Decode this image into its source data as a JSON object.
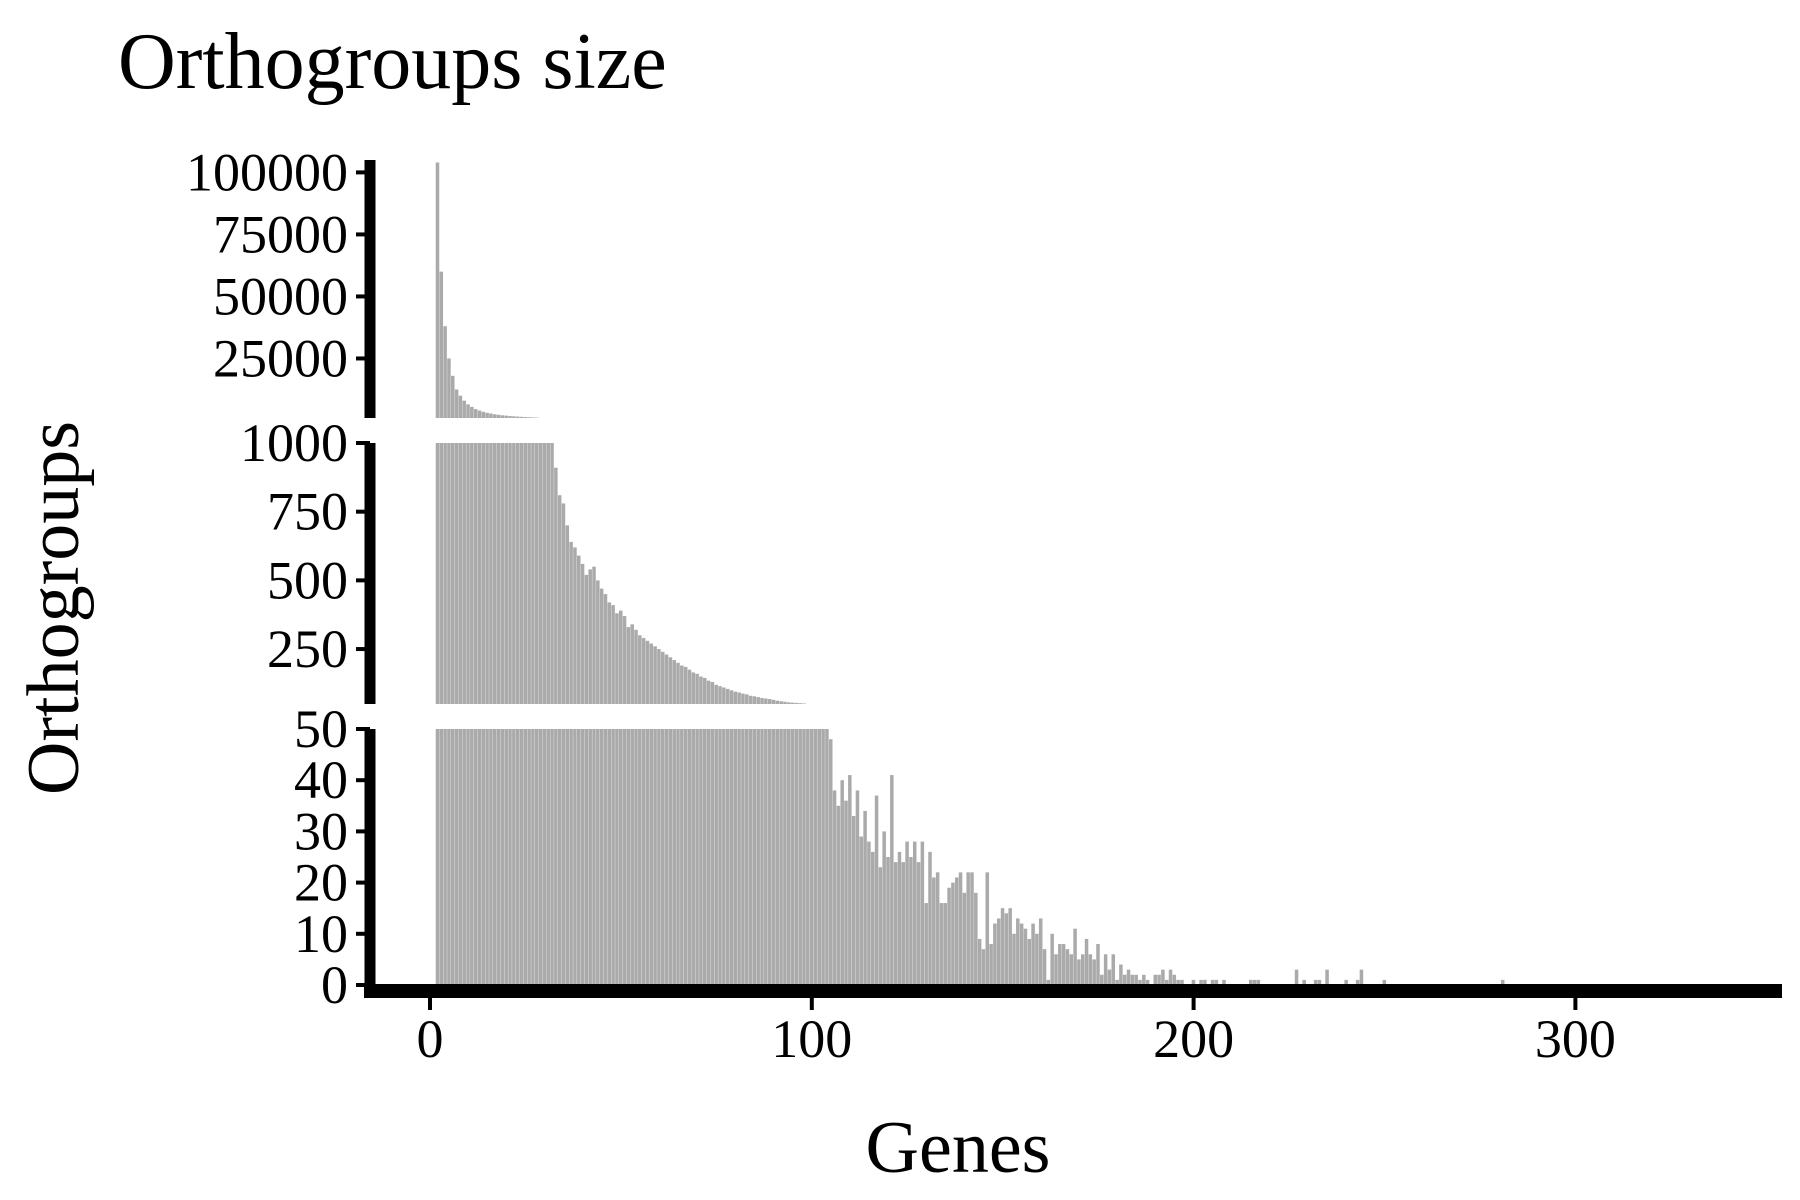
{
  "chart_data": {
    "type": "bar",
    "title": "Orthogroups size",
    "xlabel": "Genes",
    "ylabel": "Orthogroups",
    "bar_color": "#aaaaaa",
    "axis_color": "#000000",
    "background": "#ffffff",
    "grid": false,
    "xlim": [
      -1,
      350
    ],
    "xticks": [
      "0",
      "100",
      "200",
      "300"
    ],
    "xtick_values": [
      0,
      100,
      200,
      300
    ],
    "broken_y_axis": true,
    "y_segments": [
      {
        "name": "upper",
        "range": [
          1000,
          105000
        ],
        "tick_values": [
          25000,
          50000,
          75000,
          100000
        ],
        "tick_labels": [
          "25000",
          "50000",
          "75000",
          "100000"
        ]
      },
      {
        "name": "middle",
        "range": [
          50,
          1000
        ],
        "tick_values": [
          250,
          500,
          750,
          1000
        ],
        "tick_labels": [
          "250",
          "500",
          "750",
          "1000"
        ]
      },
      {
        "name": "lower",
        "range": [
          0,
          50
        ],
        "tick_values": [
          0,
          10,
          20,
          30,
          40,
          50
        ],
        "tick_labels": [
          "0",
          "10",
          "20",
          "30",
          "40",
          "50"
        ]
      }
    ],
    "x_start": 2,
    "values": [
      104000,
      60000,
      38000,
      25000,
      18000,
      12500,
      10000,
      8000,
      6500,
      5500,
      4600,
      4000,
      3500,
      3100,
      2800,
      2500,
      2300,
      2100,
      1950,
      1800,
      1680,
      1570,
      1470,
      1380,
      1300,
      1230,
      1170,
      1110,
      1060,
      1020,
      1000,
      910,
      810,
      780,
      700,
      640,
      620,
      590,
      560,
      520,
      540,
      550,
      500,
      470,
      450,
      420,
      410,
      380,
      390,
      370,
      330,
      340,
      320,
      300,
      290,
      280,
      270,
      260,
      250,
      240,
      230,
      220,
      210,
      200,
      190,
      185,
      175,
      165,
      160,
      150,
      145,
      135,
      130,
      120,
      115,
      110,
      105,
      100,
      95,
      92,
      88,
      85,
      80,
      78,
      75,
      72,
      70,
      68,
      65,
      62,
      60,
      58,
      56,
      55,
      54,
      53,
      52,
      51,
      51,
      50,
      50,
      50,
      50,
      48,
      38,
      35,
      40,
      36,
      41,
      33,
      38,
      29,
      34,
      28,
      26,
      37,
      23,
      30,
      25,
      41,
      24,
      26,
      24,
      28,
      25,
      28,
      24,
      28,
      16,
      26,
      21,
      22,
      16,
      16,
      19,
      20,
      21,
      22,
      18,
      22,
      22,
      18,
      9,
      7,
      22,
      8,
      12,
      13,
      15,
      14,
      15,
      10,
      13,
      12,
      11,
      9,
      12,
      10,
      13,
      7,
      1,
      10,
      6,
      8,
      8,
      7,
      6,
      11,
      5,
      6,
      9,
      6,
      5,
      8,
      2,
      6,
      3,
      6,
      1,
      4,
      2,
      3,
      2,
      2,
      1,
      2,
      1,
      0,
      2,
      2,
      3,
      1,
      3,
      2,
      1,
      1,
      0,
      0,
      1,
      0,
      1,
      1,
      0,
      1,
      1,
      0,
      1,
      0,
      0,
      0,
      0,
      0,
      0,
      1,
      1,
      1,
      0,
      0,
      0,
      0,
      0,
      0,
      0,
      0,
      0,
      3,
      0,
      1,
      0,
      0,
      1,
      1,
      0,
      3,
      0,
      0,
      0,
      0,
      1,
      0,
      0,
      1,
      3,
      0,
      0,
      0,
      0,
      0,
      1,
      0,
      0,
      0,
      0,
      0,
      0,
      0,
      0,
      0,
      0,
      0,
      0,
      0,
      0,
      0,
      0,
      0,
      0,
      0,
      0,
      0,
      0,
      0,
      0,
      0,
      0,
      0,
      0,
      0,
      0,
      1,
      0,
      0,
      0,
      0,
      0,
      0,
      0,
      0,
      0,
      0,
      0,
      0,
      0,
      0,
      0,
      0,
      0,
      0,
      0,
      0,
      0,
      0,
      0,
      0,
      0,
      0,
      0,
      0,
      0,
      0,
      0,
      0,
      0,
      0,
      0,
      0,
      0,
      0,
      0,
      0,
      0,
      0,
      0,
      0,
      0,
      0,
      0,
      0,
      0,
      0,
      0,
      0,
      0,
      0,
      0,
      0,
      0,
      0,
      0,
      0,
      0,
      0,
      0,
      0,
      0,
      0,
      0,
      0,
      0,
      0,
      0,
      0,
      0,
      0,
      0,
      0,
      0,
      0
    ]
  }
}
